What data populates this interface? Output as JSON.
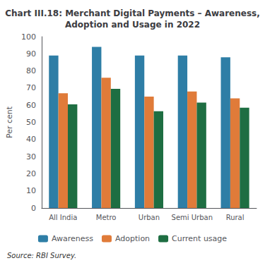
{
  "chart_data": {
    "type": "bar",
    "title": "Chart III.18: Merchant Digital Payments – Awareness,\nAdoption and Usage in 2022",
    "categories": [
      "All India",
      "Metro",
      "Urban",
      "Semi Urban",
      "Rural"
    ],
    "series": [
      {
        "name": "Awareness",
        "color": "#2e7ea6",
        "values": [
          89,
          94,
          89,
          89,
          88
        ]
      },
      {
        "name": "Adoption",
        "color": "#e07b39",
        "values": [
          67,
          76,
          65,
          68,
          64
        ]
      },
      {
        "name": "Current usage",
        "color": "#1e6e42",
        "values": [
          60.5,
          69.5,
          56.5,
          61.5,
          58.5
        ]
      }
    ],
    "ylabel": "Per cent",
    "ylim": [
      0,
      100
    ],
    "yticks": [
      0,
      10,
      20,
      30,
      40,
      50,
      60,
      70,
      80,
      90,
      100
    ],
    "grid": false,
    "legend": "bottom",
    "annotations": [
      "Source: RBI Survey."
    ]
  }
}
